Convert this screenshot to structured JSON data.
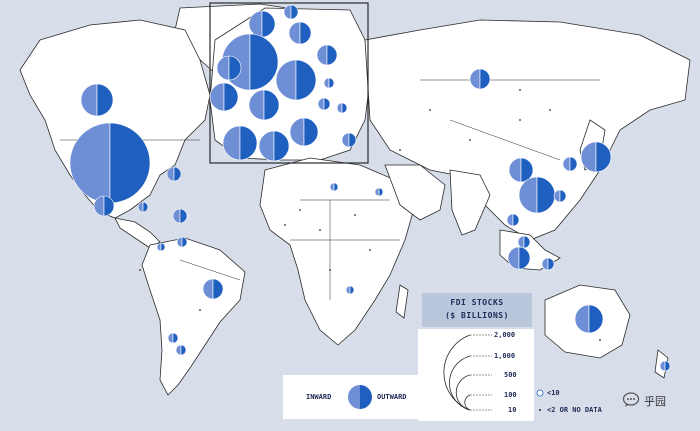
{
  "legend": {
    "title_line1": "FDI STOCKS",
    "title_line2": "($ BILLIONS)",
    "scale": [
      "2,000",
      "1,000",
      "500",
      "100",
      "10"
    ],
    "inward_label": "INWARD",
    "outward_label": "OUTWARD",
    "note_small": "<10",
    "note_nodata": "<2 OR NO DATA"
  },
  "colors": {
    "ocean": "#d7dee9",
    "land": "#ffffff",
    "inward": "#6e8ed6",
    "outward": "#1f5fbf",
    "border": "#2a2a2a"
  },
  "watermark": {
    "text": "乎园",
    "icon": "chat-bubble-icon"
  }
}
